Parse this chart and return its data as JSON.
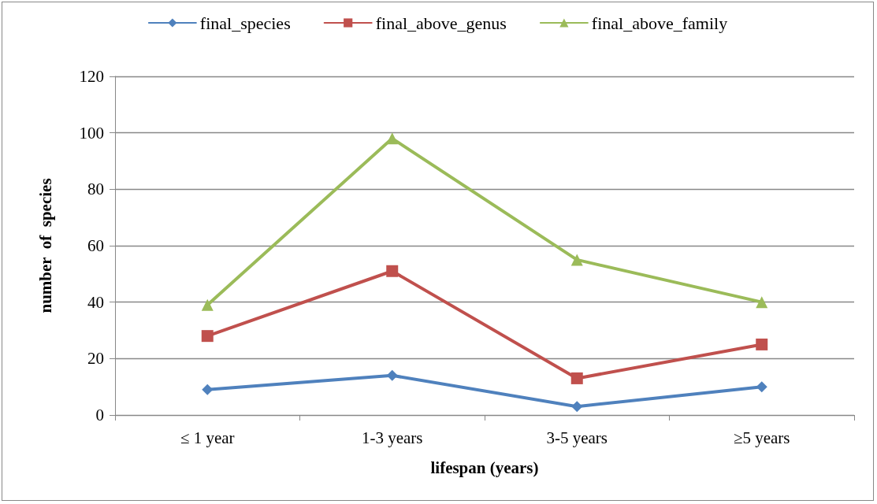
{
  "chart_data": {
    "type": "line",
    "xlabel": "lifespan (years)",
    "ylabel": "number  of  species",
    "categories": [
      "≤ 1 year",
      "1-3 years",
      "3-5 years",
      "≥5 years"
    ],
    "series": [
      {
        "name": "final_species",
        "color": "#4f81bd",
        "marker": "diamond",
        "values": [
          9,
          14,
          3,
          10
        ]
      },
      {
        "name": "final_above_genus",
        "color": "#c0504d",
        "marker": "square",
        "values": [
          28,
          51,
          13,
          25
        ]
      },
      {
        "name": "final_above_family",
        "color": "#9bbb59",
        "marker": "triangle",
        "values": [
          39,
          98,
          55,
          40
        ]
      }
    ],
    "ylim": [
      0,
      120
    ],
    "yticks": [
      0,
      20,
      40,
      60,
      80,
      100,
      120
    ],
    "grid": "y",
    "legend": "top",
    "line_style": "solid"
  }
}
